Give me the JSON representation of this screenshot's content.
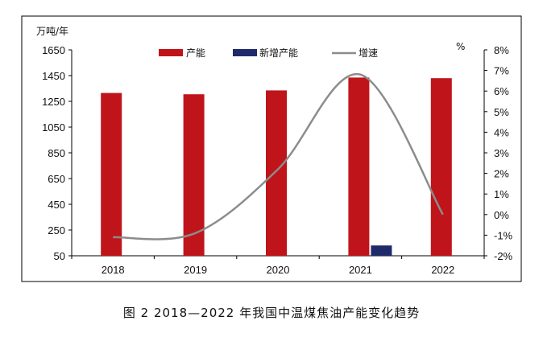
{
  "caption": "图 2  2018—2022 年我国中温煤焦油产能变化趋势",
  "chart_data": {
    "type": "bar",
    "categories": [
      "2018",
      "2019",
      "2020",
      "2021",
      "2022"
    ],
    "series": [
      {
        "name": "产能",
        "type": "bar",
        "axis": "left",
        "color": "#c0141b",
        "values": [
          1315,
          1305,
          1335,
          1435,
          1430
        ]
      },
      {
        "name": "新增产能",
        "type": "bar",
        "axis": "left",
        "color": "#1f2a6b",
        "values": [
          0,
          0,
          0,
          80,
          0
        ]
      },
      {
        "name": "增速",
        "type": "line",
        "axis": "right",
        "color": "#8c8c8c",
        "values": [
          -1.1,
          -0.9,
          2.2,
          6.8,
          0.0
        ]
      }
    ],
    "y_left": {
      "label": "万吨/年",
      "range": [
        50,
        1650
      ],
      "ticks": [
        "50",
        "250",
        "450",
        "650",
        "850",
        "1050",
        "1250",
        "1450",
        "1650"
      ]
    },
    "y_right": {
      "label": "%",
      "range": [
        -2,
        8
      ],
      "ticks": [
        "-2%",
        "-1%",
        "0%",
        "1%",
        "2%",
        "3%",
        "4%",
        "5%",
        "6%",
        "7%",
        "8%"
      ]
    },
    "legend_position": "top-center",
    "grid": false
  }
}
